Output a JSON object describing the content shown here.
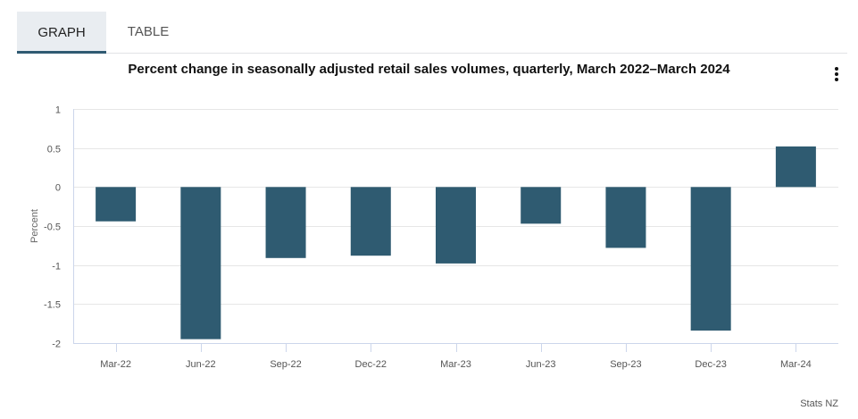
{
  "tabs": [
    {
      "label": "GRAPH",
      "active": true
    },
    {
      "label": "TABLE",
      "active": false
    }
  ],
  "menu_icon": "kebab-menu-icon",
  "source": "Stats NZ",
  "colors": {
    "bar": "#2f5b71",
    "grid": "#e6e6e6",
    "axis": "#ccd6eb",
    "active_tab_bg": "#e9edf1",
    "active_tab_underline": "#2f5a72"
  },
  "chart_data": {
    "type": "bar",
    "title": "Percent change in seasonally adjusted retail sales volumes, quarterly, March 2022–March 2024",
    "xlabel": "",
    "ylabel": "Percent",
    "ylim": [
      -2,
      1
    ],
    "yticks": [
      1,
      0.5,
      0,
      -0.5,
      -1,
      -1.5,
      -2
    ],
    "ytick_labels": [
      "1",
      "0.5",
      "0",
      "-0.5",
      "-1",
      "-1.5",
      "-2"
    ],
    "grid": true,
    "legend": "none",
    "categories": [
      "Mar-22",
      "Jun-22",
      "Sep-22",
      "Dec-22",
      "Mar-23",
      "Jun-23",
      "Sep-23",
      "Dec-23",
      "Mar-24"
    ],
    "values": [
      -0.44,
      -1.95,
      -0.91,
      -0.88,
      -0.98,
      -0.47,
      -0.78,
      -1.84,
      0.52
    ]
  }
}
